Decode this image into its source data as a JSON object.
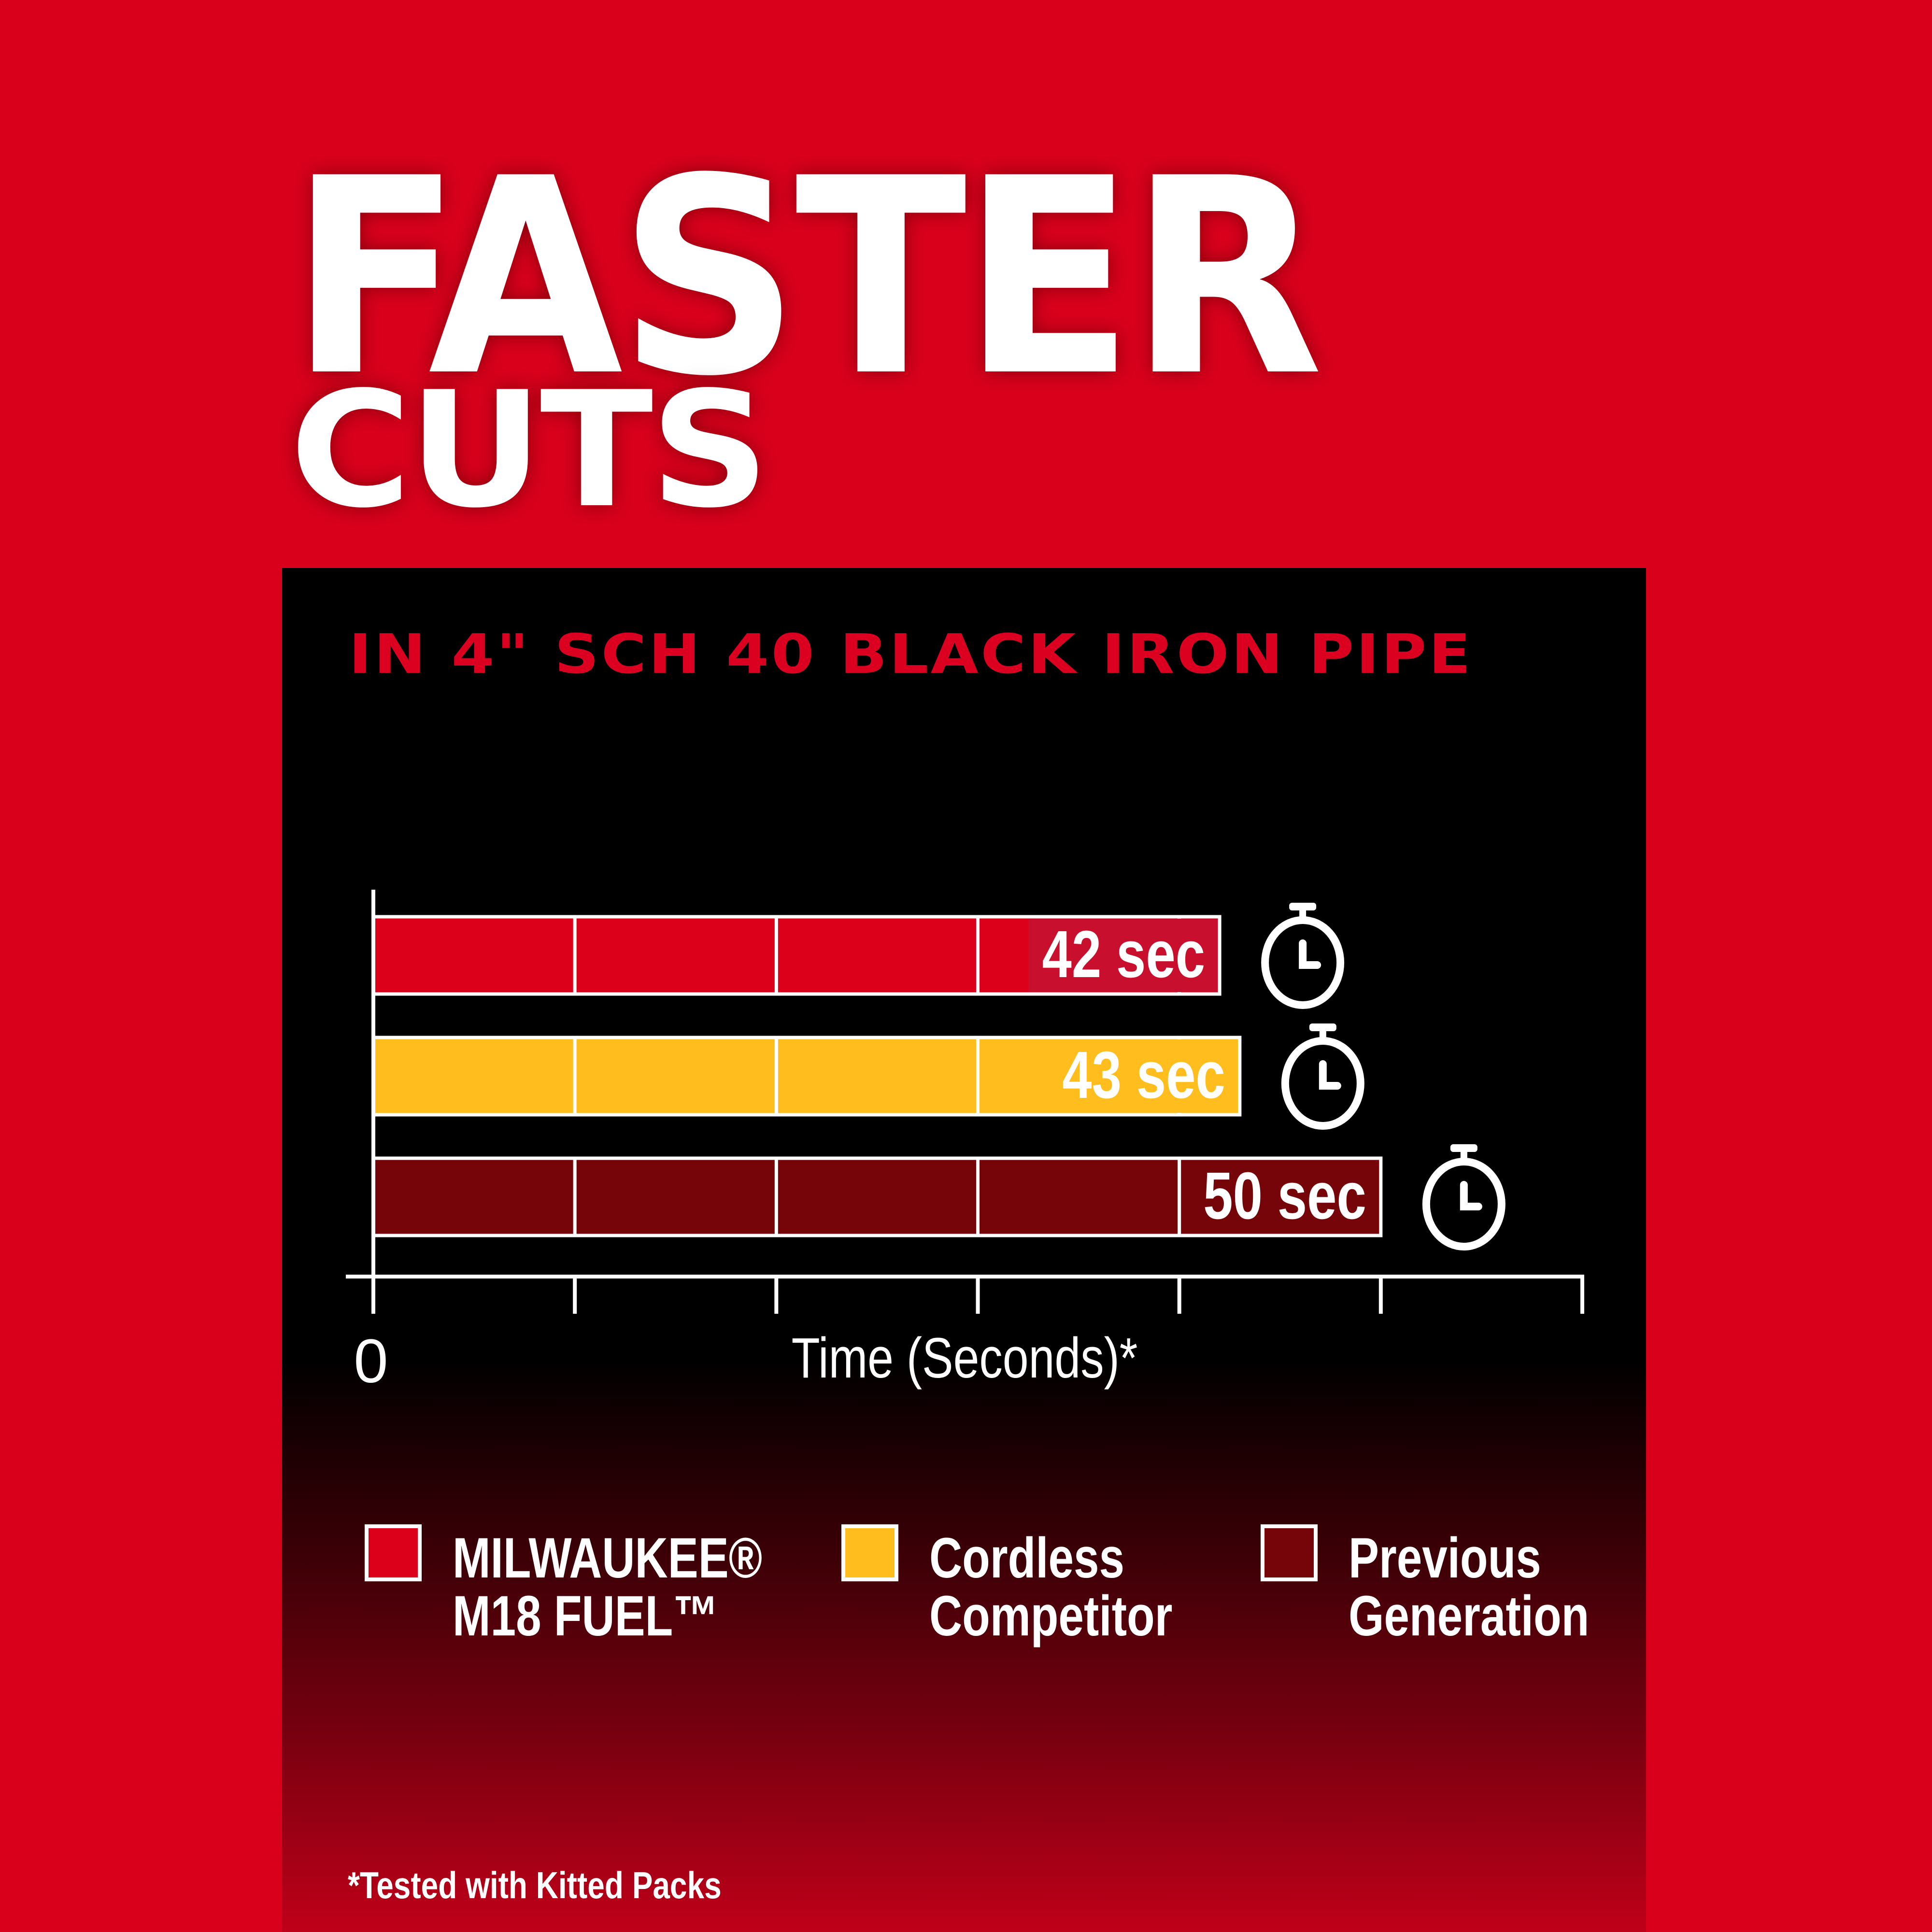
{
  "headline": {
    "line1": "FASTER",
    "line2": "CUTS"
  },
  "chart_data": {
    "type": "bar",
    "orientation": "horizontal",
    "title": "IN 4\" SCH 40 BLACK IRON PIPE",
    "xlabel": "Time (Seconds)*",
    "x_tick_labels": [
      "0"
    ],
    "xlim": [
      0,
      60
    ],
    "x_tick_step": 10,
    "categories": [
      "MILWAUKEE® M18 FUEL™",
      "Cordless Competitor",
      "Previous Generation"
    ],
    "values": [
      42,
      43,
      50
    ],
    "data_labels": [
      "42 sec",
      "43 sec",
      "50 sec"
    ],
    "colors": [
      "#dc001b",
      "#ffbe1e",
      "#760509"
    ],
    "label_bg_colors": [
      "#c8102e",
      "#ffbe1e",
      "#760509"
    ],
    "bar_icon": "stopwatch-icon",
    "legend": [
      {
        "line1": "MILWAUKEE®",
        "line2": "M18 FUEL™",
        "color": "#dc001b"
      },
      {
        "line1": "Cordless",
        "line2": "Competitor",
        "color": "#ffbe1e"
      },
      {
        "line1": "Previous",
        "line2": "Generation",
        "color": "#760509"
      }
    ],
    "legend_placement": "bottom",
    "grid": false
  },
  "footnote": "*Tested with Kitted Packs"
}
